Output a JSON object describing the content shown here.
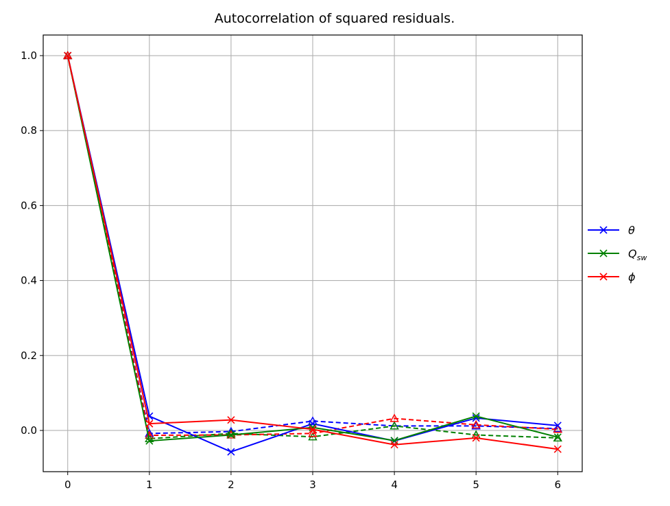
{
  "chart_data": {
    "type": "line",
    "title": "Autocorrelation of squared residuals.",
    "xlabel": "",
    "ylabel": "",
    "xlim": [
      -0.3,
      6.3
    ],
    "ylim": [
      -0.11,
      1.055
    ],
    "xticks": [
      0,
      1,
      2,
      3,
      4,
      5,
      6
    ],
    "yticks": [
      0.0,
      0.2,
      0.4,
      0.6,
      0.8,
      1.0
    ],
    "xtick_labels": [
      "0",
      "1",
      "2",
      "3",
      "4",
      "5",
      "6"
    ],
    "ytick_labels": [
      "0.0",
      "0.2",
      "0.4",
      "0.6",
      "0.8",
      "1.0"
    ],
    "grid": true,
    "legend_position": "right-outside",
    "x": [
      0,
      1,
      2,
      3,
      4,
      5,
      6
    ],
    "legend": [
      {
        "label": "θ",
        "sub": "",
        "color": "#0000ff"
      },
      {
        "label": "Q",
        "sub": "sw",
        "color": "#008000"
      },
      {
        "label": "ϕ",
        "sub": "",
        "color": "#ff0000"
      }
    ],
    "series": [
      {
        "color": "#0000ff",
        "style": "solid",
        "marker": "x",
        "values": [
          1.0,
          0.038,
          -0.057,
          0.018,
          -0.028,
          0.033,
          0.013
        ]
      },
      {
        "color": "#008000",
        "style": "solid",
        "marker": "x",
        "values": [
          1.0,
          -0.028,
          -0.012,
          0.008,
          -0.027,
          0.038,
          -0.018
        ]
      },
      {
        "color": "#ff0000",
        "style": "solid",
        "marker": "x",
        "values": [
          1.0,
          0.018,
          0.028,
          0.003,
          -0.038,
          -0.02,
          -0.05
        ]
      },
      {
        "color": "#0000ff",
        "style": "dashed",
        "marker": "triangle",
        "values": [
          1.0,
          -0.008,
          -0.003,
          0.025,
          0.012,
          0.012,
          0.005
        ]
      },
      {
        "color": "#008000",
        "style": "dashed",
        "marker": "triangle",
        "values": [
          1.0,
          -0.022,
          -0.008,
          -0.017,
          0.012,
          -0.012,
          -0.02
        ]
      },
      {
        "color": "#ff0000",
        "style": "dashed",
        "marker": "triangle",
        "values": [
          1.0,
          -0.013,
          -0.012,
          -0.008,
          0.032,
          0.015,
          0.003
        ]
      }
    ]
  }
}
